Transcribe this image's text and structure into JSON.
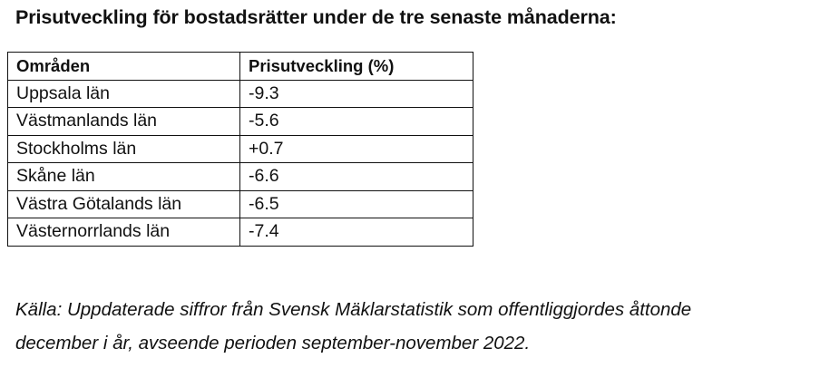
{
  "document": {
    "title": "Prisutveckling för bostadsrätter under de tre senaste månaderna:",
    "table": {
      "headers": [
        "Områden",
        "Prisutveckling (%)"
      ],
      "rows": [
        [
          "Uppsala län",
          "-9.3"
        ],
        [
          "Västmanlands län",
          "-5.6"
        ],
        [
          "Stockholms län",
          "+0.7"
        ],
        [
          "Skåne län",
          "-6.6"
        ],
        [
          "Västra Götalands län",
          "-6.5"
        ],
        [
          "Västernorrlands län",
          "-7.4"
        ]
      ]
    },
    "source_lines": [
      "Källa: Uppdaterade siffror från Svensk Mäklarstatistik som offentliggjordes åttonde",
      "december i år, avseende perioden september-november 2022."
    ]
  }
}
